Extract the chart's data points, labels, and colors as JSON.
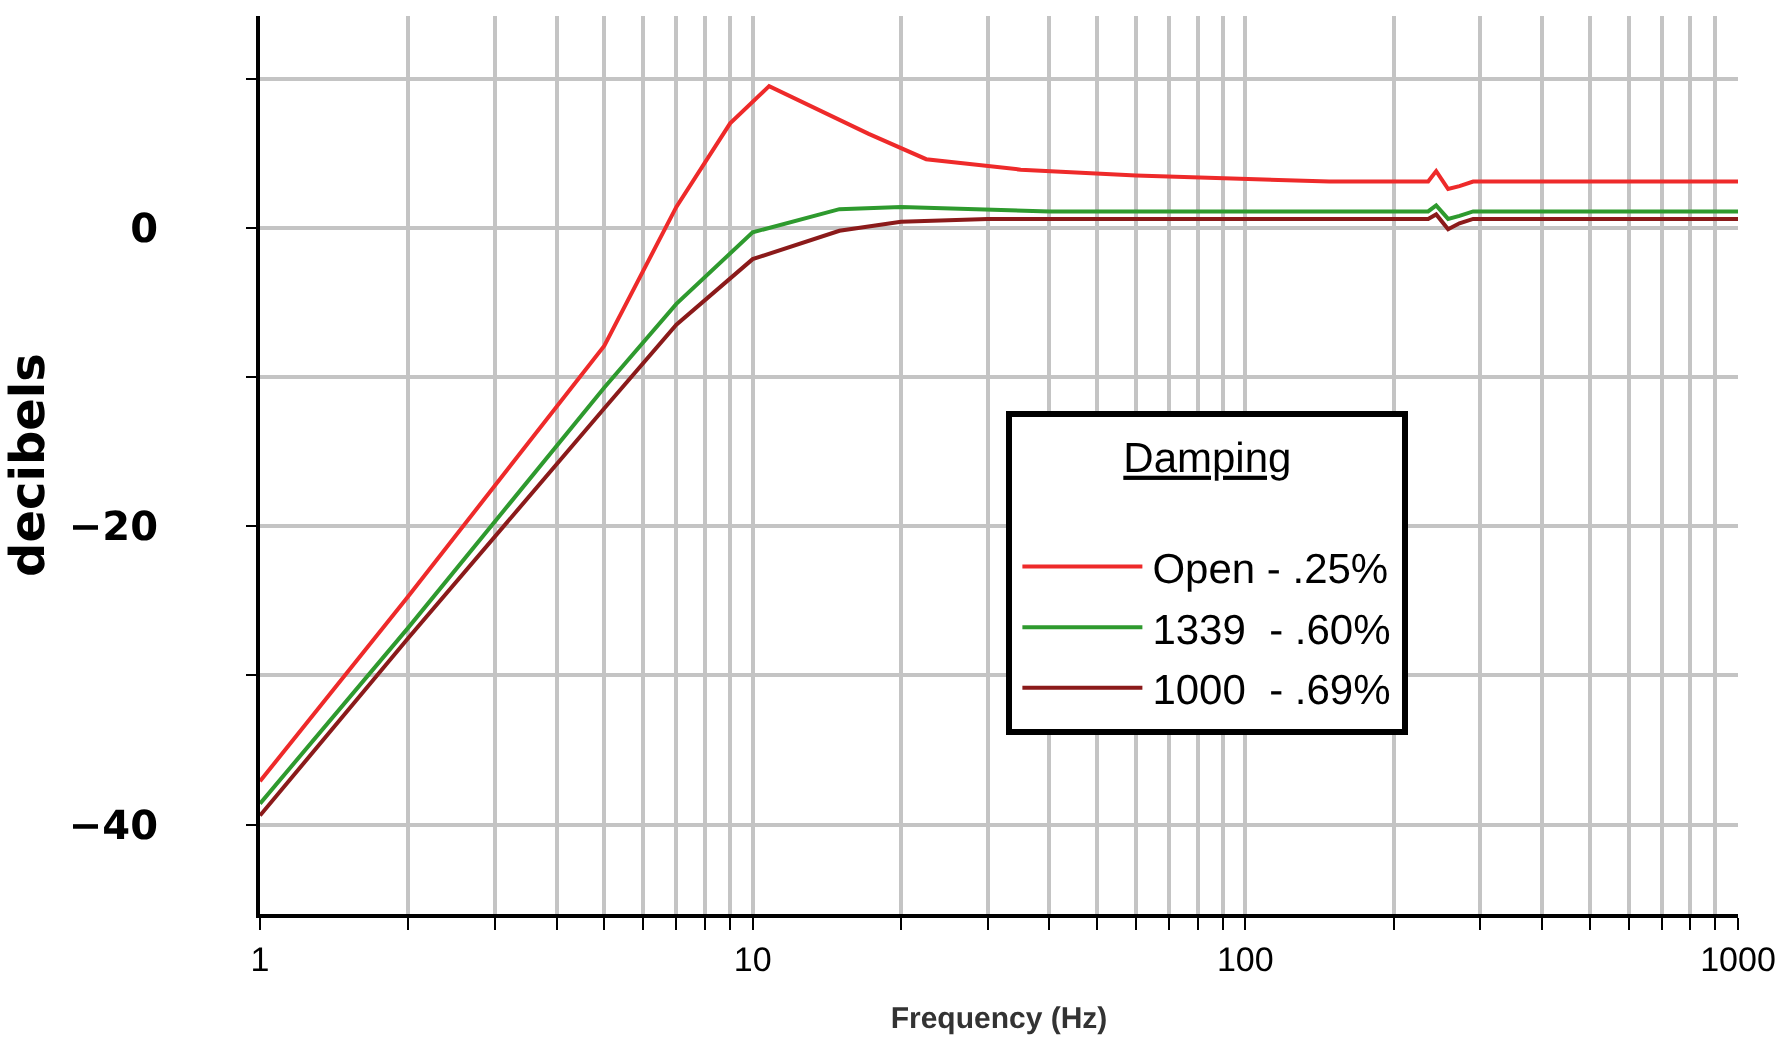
{
  "chart_data": {
    "type": "line",
    "xlabel": "Frequency (Hz)",
    "ylabel": "decibels",
    "legend_title": "Damping",
    "log": "x",
    "grid": true,
    "legend": "bottom right",
    "marker": "none",
    "line_style": "solid",
    "xlim": [
      1,
      1000
    ],
    "ylim": [
      -46,
      14.2
    ],
    "xticks": [
      1,
      {
        "value": 2,
        "label": null
      },
      {
        "value": 3,
        "label": null
      },
      {
        "value": 4,
        "label": null
      },
      {
        "value": 5,
        "label": null
      },
      {
        "value": 6,
        "label": null
      },
      {
        "value": 7,
        "label": null
      },
      {
        "value": 8,
        "label": null
      },
      {
        "value": 9,
        "label": null
      },
      10,
      {
        "value": 20,
        "label": null
      },
      {
        "value": 30,
        "label": null
      },
      {
        "value": 40,
        "label": null
      },
      {
        "value": 50,
        "label": null
      },
      {
        "value": 60,
        "label": null
      },
      {
        "value": 70,
        "label": null
      },
      {
        "value": 80,
        "label": null
      },
      {
        "value": 90,
        "label": null
      },
      100,
      {
        "value": 200,
        "label": null
      },
      {
        "value": 300,
        "label": null
      },
      {
        "value": 400,
        "label": null
      },
      {
        "value": 500,
        "label": null
      },
      {
        "value": 600,
        "label": null
      },
      {
        "value": 700,
        "label": null
      },
      {
        "value": 800,
        "label": null
      },
      {
        "value": 900,
        "label": null
      },
      1000
    ],
    "yticks": [
      {
        "value": -40,
        "label": "−40"
      },
      {
        "value": -30,
        "label": null
      },
      {
        "value": -20,
        "label": "−20"
      },
      {
        "value": -10,
        "label": null
      },
      {
        "value": 0,
        "label": "0"
      },
      {
        "value": 10,
        "label": null
      }
    ],
    "series": [
      {
        "name": "Open - .25%",
        "color": "#ee2a2a",
        "x": [
          1,
          2,
          5,
          7,
          9,
          10.8,
          17.2,
          22.5,
          35,
          60,
          148,
          235,
          244,
          258,
          272,
          290,
          1000
        ],
        "values": [
          -37.1,
          -24.7,
          -7.9,
          1.4,
          7.0,
          9.5,
          6.3,
          4.6,
          3.9,
          3.5,
          3.1,
          3.1,
          3.8,
          2.6,
          2.8,
          3.1,
          3.1
        ]
      },
      {
        "name": "1339  - .60%",
        "color": "#2e9a2e",
        "x": [
          1,
          2,
          5,
          7,
          10,
          15,
          20,
          40,
          235,
          244,
          258,
          272,
          290,
          1000
        ],
        "values": [
          -38.6,
          -26.8,
          -10.7,
          -5.1,
          -0.3,
          1.25,
          1.4,
          1.1,
          1.1,
          1.5,
          0.6,
          0.8,
          1.1,
          1.1
        ]
      },
      {
        "name": "1000  - .69%",
        "color": "#8b1a1a",
        "x": [
          1,
          2,
          5,
          7,
          10,
          15,
          20,
          30,
          235,
          244,
          258,
          272,
          290,
          1000
        ],
        "values": [
          -39.4,
          -27.5,
          -12.1,
          -6.5,
          -2.1,
          -0.2,
          0.4,
          0.6,
          0.6,
          0.9,
          -0.1,
          0.3,
          0.6,
          0.6
        ]
      }
    ]
  }
}
